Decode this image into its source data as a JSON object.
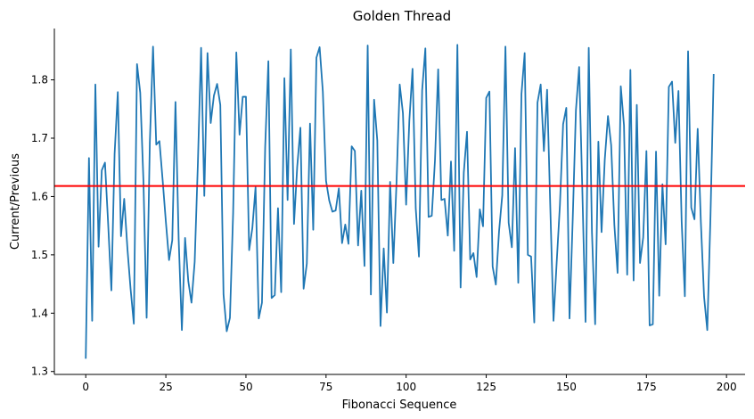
{
  "chart_data": {
    "type": "line",
    "title": "Golden Thread",
    "xlabel": "Fibonacci Sequence",
    "ylabel": "Current/Previous",
    "xlim": [
      -9.8,
      205.8
    ],
    "ylim": [
      1.295,
      1.888
    ],
    "xticks": [
      0,
      25,
      50,
      75,
      100,
      125,
      150,
      175,
      200
    ],
    "xtick_labels": [
      "0",
      "25",
      "50",
      "75",
      "100",
      "125",
      "150",
      "175",
      "200"
    ],
    "yticks": [
      1.3,
      1.4,
      1.5,
      1.6,
      1.7,
      1.8
    ],
    "ytick_labels": [
      "1.3",
      "1.4",
      "1.5",
      "1.6",
      "1.7",
      "1.8"
    ],
    "grid": false,
    "spines": "left-bottom",
    "series": [
      {
        "color": "#1f77b4",
        "x_start": 0,
        "x_step": 1,
        "values": [
          1.322,
          1.666,
          1.387,
          1.792,
          1.514,
          1.645,
          1.658,
          1.552,
          1.439,
          1.673,
          1.779,
          1.532,
          1.596,
          1.511,
          1.441,
          1.382,
          1.827,
          1.778,
          1.627,
          1.392,
          1.693,
          1.857,
          1.689,
          1.695,
          1.628,
          1.557,
          1.491,
          1.525,
          1.762,
          1.527,
          1.371,
          1.529,
          1.455,
          1.418,
          1.488,
          1.658,
          1.855,
          1.601,
          1.846,
          1.726,
          1.773,
          1.793,
          1.757,
          1.432,
          1.369,
          1.392,
          1.572,
          1.847,
          1.706,
          1.771,
          1.771,
          1.508,
          1.546,
          1.616,
          1.391,
          1.418,
          1.685,
          1.832,
          1.426,
          1.431,
          1.58,
          1.436,
          1.803,
          1.594,
          1.852,
          1.553,
          1.651,
          1.718,
          1.442,
          1.485,
          1.725,
          1.543,
          1.838,
          1.856,
          1.78,
          1.627,
          1.593,
          1.574,
          1.576,
          1.614,
          1.52,
          1.552,
          1.519,
          1.686,
          1.678,
          1.516,
          1.61,
          1.481,
          1.859,
          1.432,
          1.766,
          1.696,
          1.378,
          1.511,
          1.401,
          1.625,
          1.486,
          1.624,
          1.792,
          1.743,
          1.586,
          1.73,
          1.819,
          1.58,
          1.497,
          1.782,
          1.854,
          1.565,
          1.567,
          1.662,
          1.818,
          1.594,
          1.596,
          1.533,
          1.66,
          1.507,
          1.86,
          1.444,
          1.641,
          1.711,
          1.492,
          1.503,
          1.462,
          1.578,
          1.549,
          1.769,
          1.78,
          1.48,
          1.449,
          1.54,
          1.602,
          1.857,
          1.555,
          1.513,
          1.683,
          1.452,
          1.776,
          1.846,
          1.5,
          1.497,
          1.384,
          1.761,
          1.792,
          1.678,
          1.783,
          1.581,
          1.387,
          1.488,
          1.585,
          1.724,
          1.752,
          1.391,
          1.561,
          1.748,
          1.822,
          1.611,
          1.385,
          1.855,
          1.539,
          1.381,
          1.694,
          1.539,
          1.663,
          1.738,
          1.688,
          1.551,
          1.469,
          1.789,
          1.722,
          1.466,
          1.817,
          1.456,
          1.757,
          1.486,
          1.53,
          1.678,
          1.379,
          1.381,
          1.677,
          1.43,
          1.621,
          1.518,
          1.788,
          1.797,
          1.692,
          1.781,
          1.557,
          1.429,
          1.849,
          1.581,
          1.561,
          1.716,
          1.556,
          1.428,
          1.371,
          1.566,
          1.81
        ]
      }
    ],
    "reference_line": {
      "y": 1.618,
      "color": "#ff0000"
    }
  }
}
